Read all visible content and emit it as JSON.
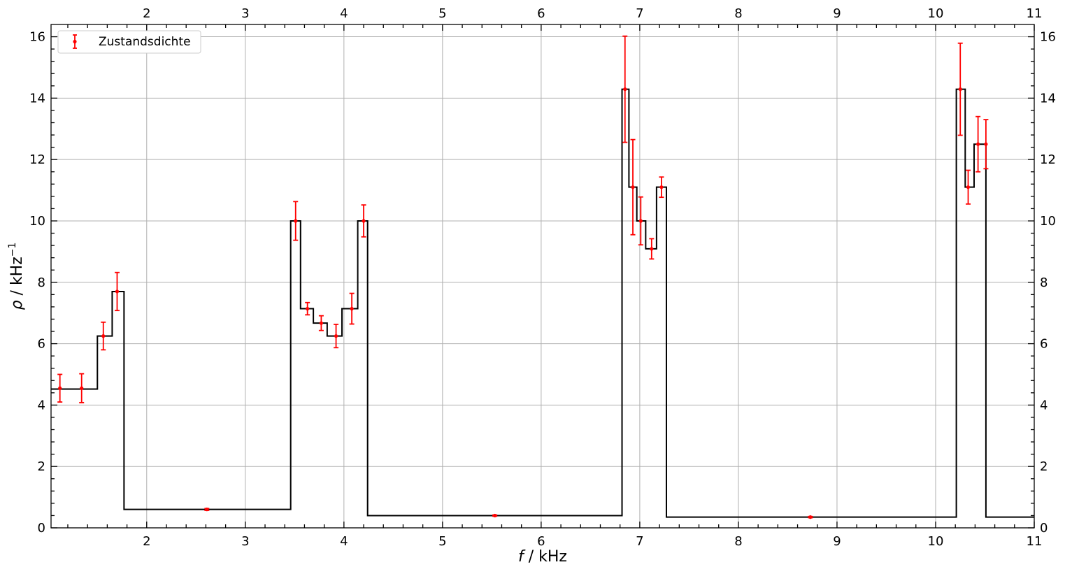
{
  "chart_data": {
    "type": "bar",
    "subtype": "step-histogram-with-errorbars",
    "title": "",
    "xlabel_italic": "f",
    "xlabel_rest": " / kHz",
    "ylabel_italic": "ρ",
    "ylabel_rest": " / kHz",
    "ylabel_sup": "−1",
    "xlim": [
      1.03,
      11.0
    ],
    "ylim": [
      0,
      16.4
    ],
    "grid": true,
    "legend_position": "top-left",
    "x_ticks": [
      2,
      3,
      4,
      5,
      6,
      7,
      8,
      9,
      10,
      11
    ],
    "x_tick_labels": [
      "2",
      "3",
      "4",
      "5",
      "6",
      "7",
      "8",
      "9",
      "10",
      "11"
    ],
    "y_ticks": [
      0,
      2,
      4,
      6,
      8,
      10,
      12,
      14,
      16
    ],
    "y_tick_labels": [
      "0",
      "2",
      "4",
      "6",
      "8",
      "10",
      "12",
      "14",
      "16"
    ],
    "colors": {
      "histogram": "#000000",
      "errorbars": "#ff0000",
      "grid": "#b0b0b0"
    },
    "step_series": {
      "edges": [
        1.0,
        1.5,
        1.65,
        1.77,
        3.46,
        3.56,
        3.69,
        3.83,
        3.98,
        4.14,
        4.24,
        6.82,
        6.89,
        6.97,
        7.06,
        7.17,
        7.27,
        10.21,
        10.3,
        10.39,
        10.51,
        11.0
      ],
      "values": [
        4.52,
        6.25,
        7.7,
        0.6,
        10.0,
        7.14,
        6.67,
        6.25,
        7.14,
        10.0,
        0.4,
        14.29,
        11.1,
        10.0,
        9.09,
        11.1,
        0.35,
        14.29,
        11.1,
        12.5,
        0.35
      ]
    },
    "series": [
      {
        "name": "Zustandsdichte",
        "points": [
          {
            "x": 1.12,
            "y": 4.55,
            "err": 0.45
          },
          {
            "x": 1.34,
            "y": 4.55,
            "err": 0.47
          },
          {
            "x": 1.56,
            "y": 6.25,
            "err": 0.45
          },
          {
            "x": 1.7,
            "y": 7.7,
            "err": 0.62
          },
          {
            "x": 2.61,
            "y": 0.6,
            "err": 0.03
          },
          {
            "x": 3.51,
            "y": 10.0,
            "err": 0.63
          },
          {
            "x": 3.63,
            "y": 7.14,
            "err": 0.2
          },
          {
            "x": 3.77,
            "y": 6.67,
            "err": 0.24
          },
          {
            "x": 3.92,
            "y": 6.25,
            "err": 0.38
          },
          {
            "x": 4.08,
            "y": 7.14,
            "err": 0.5
          },
          {
            "x": 4.2,
            "y": 10.0,
            "err": 0.52
          },
          {
            "x": 5.53,
            "y": 0.4,
            "err": 0.02
          },
          {
            "x": 6.85,
            "y": 14.29,
            "err": 1.73
          },
          {
            "x": 6.93,
            "y": 11.1,
            "err": 1.55
          },
          {
            "x": 7.01,
            "y": 10.0,
            "err": 0.78
          },
          {
            "x": 7.12,
            "y": 9.09,
            "err": 0.33
          },
          {
            "x": 7.22,
            "y": 11.1,
            "err": 0.33
          },
          {
            "x": 8.73,
            "y": 0.35,
            "err": 0.02
          },
          {
            "x": 10.25,
            "y": 14.29,
            "err": 1.5
          },
          {
            "x": 10.33,
            "y": 11.1,
            "err": 0.55
          },
          {
            "x": 10.43,
            "y": 12.5,
            "err": 0.9
          },
          {
            "x": 10.51,
            "y": 12.5,
            "err": 0.8
          }
        ]
      }
    ]
  }
}
